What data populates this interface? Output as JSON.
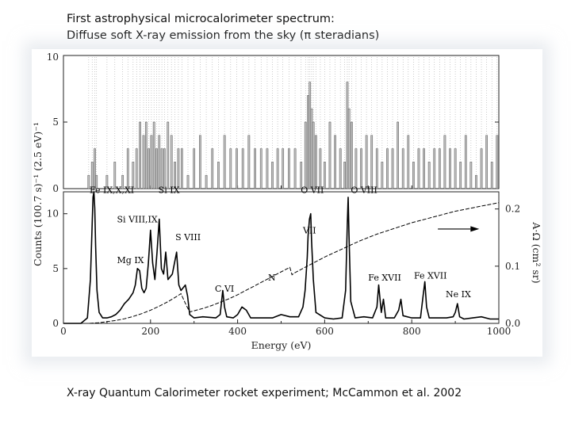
{
  "slide": {
    "title_line1": "First astrophysical microcalorimeter spectrum:",
    "title_line2": "Diffuse soft X-ray emission from the sky (π steradians)",
    "caption": "X-ray Quantum Calorimeter rocket experiment; McCammon et al. 2002"
  },
  "chart_data": [
    {
      "type": "bar",
      "panel": "top",
      "xlim": [
        0,
        1000
      ],
      "ylim": [
        0,
        10
      ],
      "yticks": [
        "0",
        "5",
        "10"
      ],
      "series": [
        {
          "x": [
            58,
            66,
            72,
            76,
            100,
            118,
            136,
            148,
            160,
            168,
            176,
            184,
            190,
            196,
            202,
            208,
            214,
            220,
            226,
            232,
            240,
            248,
            256,
            264,
            272,
            286,
            300,
            314,
            328,
            342,
            356,
            370,
            384,
            398,
            412,
            426,
            440,
            454,
            468,
            480,
            492,
            504,
            518,
            532,
            546,
            556,
            562,
            566,
            570,
            574,
            580,
            590,
            600,
            612,
            624,
            636,
            646,
            652,
            656,
            662,
            672,
            684,
            696,
            708,
            720,
            732,
            744,
            756,
            768,
            780,
            792,
            804,
            816,
            828,
            840,
            852,
            864,
            876,
            888,
            900,
            912,
            924,
            936,
            948,
            960,
            972,
            984,
            996
          ],
          "values": [
            1,
            2,
            3,
            1,
            1,
            2,
            1,
            3,
            2,
            3,
            5,
            4,
            5,
            3,
            4,
            5,
            3,
            4,
            3,
            3,
            5,
            4,
            2,
            3,
            3,
            1,
            3,
            4,
            1,
            3,
            2,
            4,
            3,
            3,
            3,
            4,
            3,
            3,
            3,
            2,
            3,
            3,
            3,
            3,
            2,
            5,
            7,
            8,
            6,
            5,
            4,
            3,
            2,
            5,
            4,
            3,
            2,
            8,
            6,
            5,
            3,
            3,
            4,
            4,
            3,
            2,
            3,
            3,
            5,
            3,
            4,
            2,
            3,
            3,
            2,
            3,
            3,
            4,
            3,
            3,
            2,
            4,
            2,
            1,
            3,
            4,
            2,
            4
          ]
        }
      ]
    },
    {
      "type": "line",
      "panel": "bottom",
      "xlabel": "Energy (eV)",
      "ylabel": "Counts (100.7 s)⁻¹ (2.5 eV)⁻¹",
      "y2label": "A·Ω (cm² sr)",
      "xlim": [
        0,
        1000
      ],
      "ylim": [
        0,
        12
      ],
      "y2lim": [
        0,
        0.23
      ],
      "xticks": [
        "0",
        "200",
        "400",
        "600",
        "800",
        "1000"
      ],
      "yticks": [
        "0",
        "5",
        "10"
      ],
      "y2ticks": [
        "0.0",
        "0.1",
        "0.2"
      ],
      "series": [
        {
          "x": [
            0,
            40,
            55,
            62,
            66,
            68,
            70,
            72,
            74,
            77,
            82,
            90,
            100,
            110,
            120,
            130,
            140,
            150,
            160,
            165,
            170,
            175,
            180,
            185,
            190,
            195,
            200,
            205,
            210,
            215,
            220,
            225,
            230,
            235,
            240,
            250,
            260,
            265,
            270,
            280,
            285,
            290,
            300,
            320,
            350,
            360,
            366,
            370,
            375,
            390,
            400,
            410,
            420,
            430,
            450,
            480,
            500,
            520,
            540,
            550,
            555,
            560,
            562,
            565,
            568,
            570,
            574,
            580,
            600,
            620,
            640,
            648,
            652,
            654,
            656,
            660,
            670,
            690,
            710,
            720,
            724,
            730,
            735,
            740,
            760,
            770,
            775,
            780,
            800,
            820,
            826,
            830,
            834,
            840,
            860,
            880,
            895,
            900,
            905,
            910,
            920,
            940,
            960,
            980,
            1000
          ],
          "values": [
            0,
            0,
            0.5,
            4,
            9,
            11.5,
            12,
            10.5,
            7,
            3,
            1,
            0.5,
            0.5,
            0.6,
            0.8,
            1.2,
            1.8,
            2.2,
            2.8,
            3.5,
            5,
            4.8,
            3.2,
            2.8,
            3.2,
            5.5,
            8.5,
            5.5,
            4,
            6.5,
            9.5,
            5,
            4.5,
            6.5,
            4,
            4.5,
            6.5,
            3.5,
            3,
            3.5,
            2.5,
            0.8,
            0.5,
            0.6,
            0.5,
            0.8,
            3,
            1.5,
            0.6,
            0.5,
            0.8,
            1.5,
            1.2,
            0.5,
            0.5,
            0.5,
            0.8,
            0.6,
            0.6,
            1.5,
            3,
            6,
            8,
            9.5,
            10,
            7.5,
            4,
            1,
            0.5,
            0.4,
            0.5,
            3,
            9,
            11.5,
            8,
            2,
            0.5,
            0.6,
            0.5,
            1.5,
            3.5,
            1,
            2.2,
            0.5,
            0.5,
            1.2,
            2.2,
            0.7,
            0.5,
            0.5,
            2.5,
            3.8,
            1.5,
            0.5,
            0.5,
            0.5,
            0.6,
            1,
            1.8,
            0.6,
            0.4,
            0.5,
            0.6,
            0.4,
            0.4
          ]
        },
        {
          "axis": "right",
          "x": [
            60,
            80,
            100,
            120,
            140,
            160,
            180,
            200,
            220,
            240,
            260,
            270,
            280,
            290,
            300,
            320,
            340,
            360,
            380,
            400,
            420,
            440,
            460,
            480,
            500,
            520,
            525,
            530,
            540,
            560,
            580,
            600,
            620,
            640,
            660,
            680,
            700,
            720,
            740,
            760,
            780,
            800,
            820,
            840,
            860,
            880,
            900,
            920,
            940,
            960,
            980,
            1000
          ],
          "values": [
            0,
            0.001,
            0.003,
            0.005,
            0.008,
            0.012,
            0.017,
            0.023,
            0.03,
            0.038,
            0.047,
            0.052,
            0.035,
            0.02,
            0.022,
            0.026,
            0.031,
            0.037,
            0.043,
            0.05,
            0.058,
            0.066,
            0.074,
            0.082,
            0.09,
            0.098,
            0.085,
            0.088,
            0.092,
            0.1,
            0.108,
            0.116,
            0.123,
            0.13,
            0.137,
            0.144,
            0.15,
            0.156,
            0.161,
            0.166,
            0.171,
            0.176,
            0.18,
            0.184,
            0.188,
            0.192,
            0.196,
            0.199,
            0.202,
            0.205,
            0.208,
            0.211
          ]
        }
      ],
      "annotations": [
        {
          "text": "Fe IX,X,XI",
          "x": 60,
          "y": 11.9
        },
        {
          "text": "Si IX",
          "x": 218,
          "y": 11.9
        },
        {
          "text": "O VII",
          "x": 545,
          "y": 11.9
        },
        {
          "text": "O VIII",
          "x": 660,
          "y": 11.9
        },
        {
          "text": "Si VIII,IX",
          "x": 123,
          "y": 9.2
        },
        {
          "text": "S VIII",
          "x": 257,
          "y": 7.6
        },
        {
          "text": "VII",
          "x": 550,
          "y": 8.2
        },
        {
          "text": "Mg IX",
          "x": 123,
          "y": 5.5
        },
        {
          "text": "N",
          "x": 470,
          "y": 3.9
        },
        {
          "text": "C VI",
          "x": 348,
          "y": 2.9
        },
        {
          "text": "Fe XVII",
          "x": 700,
          "y": 3.9
        },
        {
          "text": "Fe XVII",
          "x": 805,
          "y": 4.1
        },
        {
          "text": "Ne IX",
          "x": 878,
          "y": 2.4
        }
      ]
    }
  ]
}
